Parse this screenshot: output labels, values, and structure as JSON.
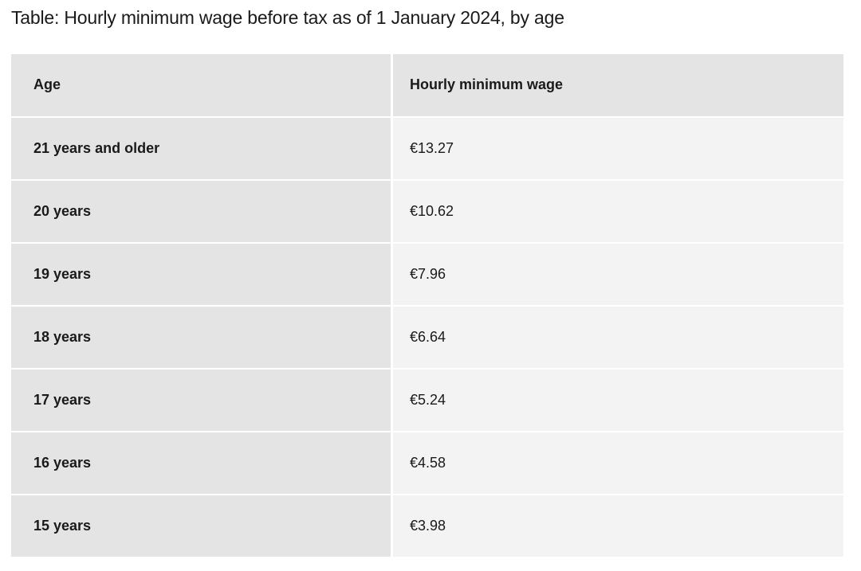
{
  "page": {
    "title": "Table: Hourly minimum wage before tax as of 1 January 2024, by age"
  },
  "table": {
    "headers": {
      "age": "Age",
      "wage": "Hourly minimum wage"
    },
    "rows": [
      {
        "age": "21 years and older",
        "wage": "€13.27"
      },
      {
        "age": "20 years",
        "wage": "€10.62"
      },
      {
        "age": "19 years",
        "wage": "€7.96"
      },
      {
        "age": "18 years",
        "wage": "€6.64"
      },
      {
        "age": "17 years",
        "wage": "€5.24"
      },
      {
        "age": "16 years",
        "wage": "€4.58"
      },
      {
        "age": "15 years",
        "wage": "€3.98"
      }
    ]
  },
  "colors": {
    "page_bg": "#ffffff",
    "header_cell_bg": "#e4e4e4",
    "age_cell_bg": "#e4e4e4",
    "wage_cell_bg": "#f3f3f3",
    "text": "#1a1a1a",
    "row_gap": "#ffffff"
  },
  "chart_data": {
    "type": "table",
    "title": "Table: Hourly minimum wage before tax as of 1 January 2024, by age",
    "columns": [
      "Age",
      "Hourly minimum wage"
    ],
    "rows": [
      [
        "21 years and older",
        "€13.27"
      ],
      [
        "20 years",
        "€10.62"
      ],
      [
        "19 years",
        "€7.96"
      ],
      [
        "18 years",
        "€6.64"
      ],
      [
        "17 years",
        "€5.24"
      ],
      [
        "16 years",
        "€4.58"
      ],
      [
        "15 years",
        "€3.98"
      ]
    ],
    "values_eur": [
      13.27,
      10.62,
      7.96,
      6.64,
      5.24,
      4.58,
      3.98
    ]
  }
}
